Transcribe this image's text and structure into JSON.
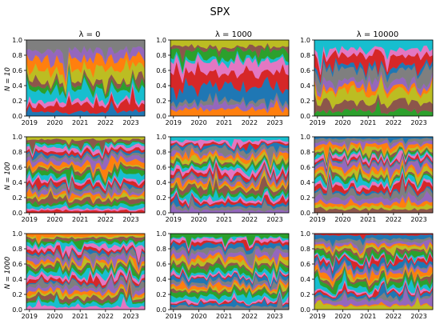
{
  "figure": {
    "title": "SPX",
    "column_titles": [
      "λ = 0",
      "λ = 1000",
      "λ = 10000"
    ],
    "row_labels": [
      "N = 10",
      "N = 100",
      "N = 1000"
    ]
  },
  "palette": [
    "#1f77b4",
    "#ff7f0e",
    "#2ca02c",
    "#d62728",
    "#9467bd",
    "#8c564b",
    "#e377c2",
    "#7f7f7f",
    "#bcbd22",
    "#17becf"
  ],
  "chart_data": [
    {
      "type": "area",
      "title": "λ = 0",
      "ylabel": "N = 10",
      "x_ticks": [
        "2019",
        "2020",
        "2021",
        "2022",
        "2023"
      ],
      "y_ticks": [
        "0.0",
        "0.2",
        "0.4",
        "0.6",
        "0.8",
        "1.0"
      ],
      "xlim": [
        "2018-11",
        "2023-07"
      ],
      "ylim": [
        0,
        1
      ],
      "stacked": true,
      "grid": false,
      "n_assets": 10
    },
    {
      "type": "area",
      "title": "λ = 1000",
      "ylabel": "",
      "x_ticks": [
        "2019",
        "2020",
        "2021",
        "2022",
        "2023"
      ],
      "y_ticks": [
        "0.0",
        "0.2",
        "0.4",
        "0.6",
        "0.8",
        "1.0"
      ],
      "xlim": [
        "2018-11",
        "2023-07"
      ],
      "ylim": [
        0,
        1
      ],
      "stacked": true,
      "grid": false,
      "n_assets": 10
    },
    {
      "type": "area",
      "title": "λ = 10000",
      "ylabel": "",
      "x_ticks": [
        "2019",
        "2020",
        "2021",
        "2022",
        "2023"
      ],
      "y_ticks": [
        "0.0",
        "0.2",
        "0.4",
        "0.6",
        "0.8",
        "1.0"
      ],
      "xlim": [
        "2018-11",
        "2023-07"
      ],
      "ylim": [
        0,
        1
      ],
      "stacked": true,
      "grid": false,
      "n_assets": 10
    },
    {
      "type": "area",
      "title": "",
      "ylabel": "N = 100",
      "x_ticks": [
        "2019",
        "2020",
        "2021",
        "2022",
        "2023"
      ],
      "y_ticks": [
        "0.0",
        "0.2",
        "0.4",
        "0.6",
        "0.8",
        "1.0"
      ],
      "xlim": [
        "2018-11",
        "2023-07"
      ],
      "ylim": [
        0,
        1
      ],
      "stacked": true,
      "grid": false,
      "n_assets": 100
    },
    {
      "type": "area",
      "title": "",
      "ylabel": "",
      "x_ticks": [
        "2019",
        "2020",
        "2021",
        "2022",
        "2023"
      ],
      "y_ticks": [
        "0.0",
        "0.2",
        "0.4",
        "0.6",
        "0.8",
        "1.0"
      ],
      "xlim": [
        "2018-11",
        "2023-07"
      ],
      "ylim": [
        0,
        1
      ],
      "stacked": true,
      "grid": false,
      "n_assets": 100
    },
    {
      "type": "area",
      "title": "",
      "ylabel": "",
      "x_ticks": [
        "2019",
        "2020",
        "2021",
        "2022",
        "2023"
      ],
      "y_ticks": [
        "0.0",
        "0.2",
        "0.4",
        "0.6",
        "0.8",
        "1.0"
      ],
      "xlim": [
        "2018-11",
        "2023-07"
      ],
      "ylim": [
        0,
        1
      ],
      "stacked": true,
      "grid": false,
      "n_assets": 100
    },
    {
      "type": "area",
      "title": "",
      "ylabel": "N = 1000",
      "x_ticks": [
        "2019",
        "2020",
        "2021",
        "2022",
        "2023"
      ],
      "y_ticks": [
        "0.0",
        "0.2",
        "0.4",
        "0.6",
        "0.8",
        "1.0"
      ],
      "xlim": [
        "2018-11",
        "2023-07"
      ],
      "ylim": [
        0,
        1
      ],
      "stacked": true,
      "grid": false,
      "n_assets": 1000
    },
    {
      "type": "area",
      "title": "",
      "ylabel": "",
      "x_ticks": [
        "2019",
        "2020",
        "2021",
        "2022",
        "2023"
      ],
      "y_ticks": [
        "0.0",
        "0.2",
        "0.4",
        "0.6",
        "0.8",
        "1.0"
      ],
      "xlim": [
        "2018-11",
        "2023-07"
      ],
      "ylim": [
        0,
        1
      ],
      "stacked": true,
      "grid": false,
      "n_assets": 1000
    },
    {
      "type": "area",
      "title": "",
      "ylabel": "",
      "x_ticks": [
        "2019",
        "2020",
        "2021",
        "2022",
        "2023"
      ],
      "y_ticks": [
        "0.0",
        "0.2",
        "0.4",
        "0.6",
        "0.8",
        "1.0"
      ],
      "xlim": [
        "2018-11",
        "2023-07"
      ],
      "ylim": [
        0,
        1
      ],
      "stacked": true,
      "grid": false,
      "n_assets": 1000
    }
  ]
}
